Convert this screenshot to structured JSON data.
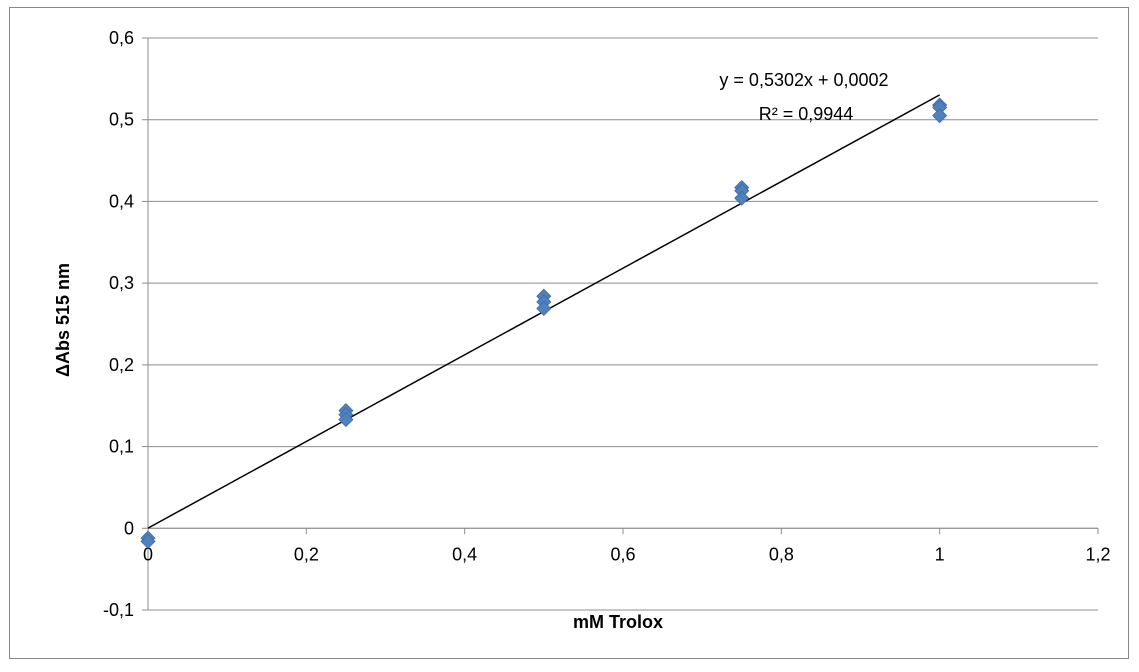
{
  "chart_data": {
    "type": "scatter",
    "title": "",
    "xlabel": "mM Trolox",
    "ylabel": "ΔAbs 515 nm",
    "xlim": [
      0,
      1.2
    ],
    "ylim": [
      -0.1,
      0.6
    ],
    "x_ticks": [
      "0",
      "0,2",
      "0,4",
      "0,6",
      "0,8",
      "1",
      "1,2"
    ],
    "y_ticks": [
      "-0,1",
      "0",
      "0,1",
      "0,2",
      "0,3",
      "0,4",
      "0,5",
      "0,6"
    ],
    "grid": "horizontal",
    "legend": "none",
    "marker": "diamond",
    "marker_color": "#4F81BD",
    "points": [
      {
        "x": 0,
        "y": -0.012
      },
      {
        "x": 0,
        "y": -0.016
      },
      {
        "x": 0.25,
        "y": 0.144
      },
      {
        "x": 0.25,
        "y": 0.139
      },
      {
        "x": 0.25,
        "y": 0.133
      },
      {
        "x": 0.5,
        "y": 0.284
      },
      {
        "x": 0.5,
        "y": 0.277
      },
      {
        "x": 0.5,
        "y": 0.269
      },
      {
        "x": 0.75,
        "y": 0.417
      },
      {
        "x": 0.75,
        "y": 0.413
      },
      {
        "x": 0.75,
        "y": 0.404
      },
      {
        "x": 1,
        "y": 0.518
      },
      {
        "x": 1,
        "y": 0.515
      },
      {
        "x": 1,
        "y": 0.505
      }
    ],
    "trendline": {
      "type": "linear",
      "slope": 0.5302,
      "intercept": 0.0002,
      "x_range": [
        0,
        1
      ],
      "color": "#000000"
    },
    "annotations": {
      "equation": "y = 0,5302x + 0,0002",
      "r_squared": "R² = 0,9944"
    }
  }
}
